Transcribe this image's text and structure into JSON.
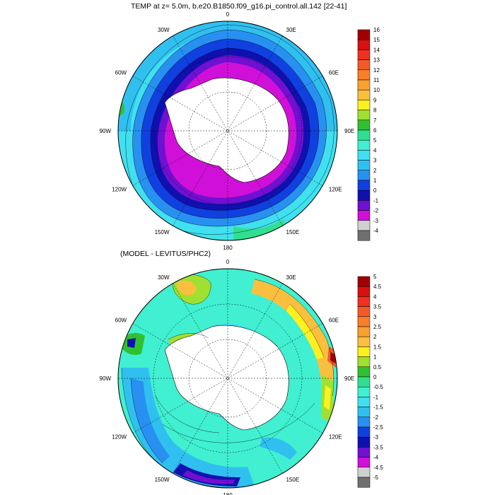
{
  "panels": [
    {
      "title": "TEMP at z=   5.0m, b.e20.B1850.f09_g16.pi_control.all.142 [22-41]",
      "colorbar": {
        "levels": [
          "16",
          "15",
          "14",
          "13",
          "12",
          "11",
          "10",
          "9",
          "8",
          "7",
          "6",
          "5",
          "4",
          "3",
          "2",
          "1",
          "0",
          "-1",
          "-2",
          "-3",
          "-4"
        ],
        "colors": [
          "#a00000",
          "#d81010",
          "#f03020",
          "#f35a28",
          "#f77f2a",
          "#f9a030",
          "#fbbf40",
          "#fff020",
          "#a0e030",
          "#30c030",
          "#30e090",
          "#40f0d0",
          "#40e0f0",
          "#30c0f0",
          "#2890f0",
          "#1040e0",
          "#1010b0",
          "#7010d0",
          "#d010d8",
          "#d0d0d0",
          "#707070"
        ]
      }
    },
    {
      "title": "(MODEL - LEVITUS/PHC2)",
      "colorbar": {
        "levels": [
          "5",
          "4.5",
          "4",
          "3.5",
          "3",
          "2.5",
          "2",
          "1.5",
          "1",
          "0.5",
          "0",
          "-0.5",
          "-1",
          "-1.5",
          "-2",
          "-2.5",
          "-3",
          "-3.5",
          "-4",
          "-4.5",
          "-5"
        ],
        "colors": [
          "#a00000",
          "#d81010",
          "#f03020",
          "#f35a28",
          "#f77f2a",
          "#f9a030",
          "#fbbf40",
          "#fff020",
          "#a0e030",
          "#30c030",
          "#30e090",
          "#40f0d0",
          "#40e0f0",
          "#30c0f0",
          "#2890f0",
          "#1040e0",
          "#1010b0",
          "#7010d0",
          "#d010d8",
          "#d0d0d0",
          "#707070"
        ]
      }
    }
  ],
  "longitude_labels": [
    "0",
    "30E",
    "60E",
    "90E",
    "120E",
    "150E",
    "180",
    "150W",
    "120W",
    "90W",
    "60W",
    "30W"
  ]
}
